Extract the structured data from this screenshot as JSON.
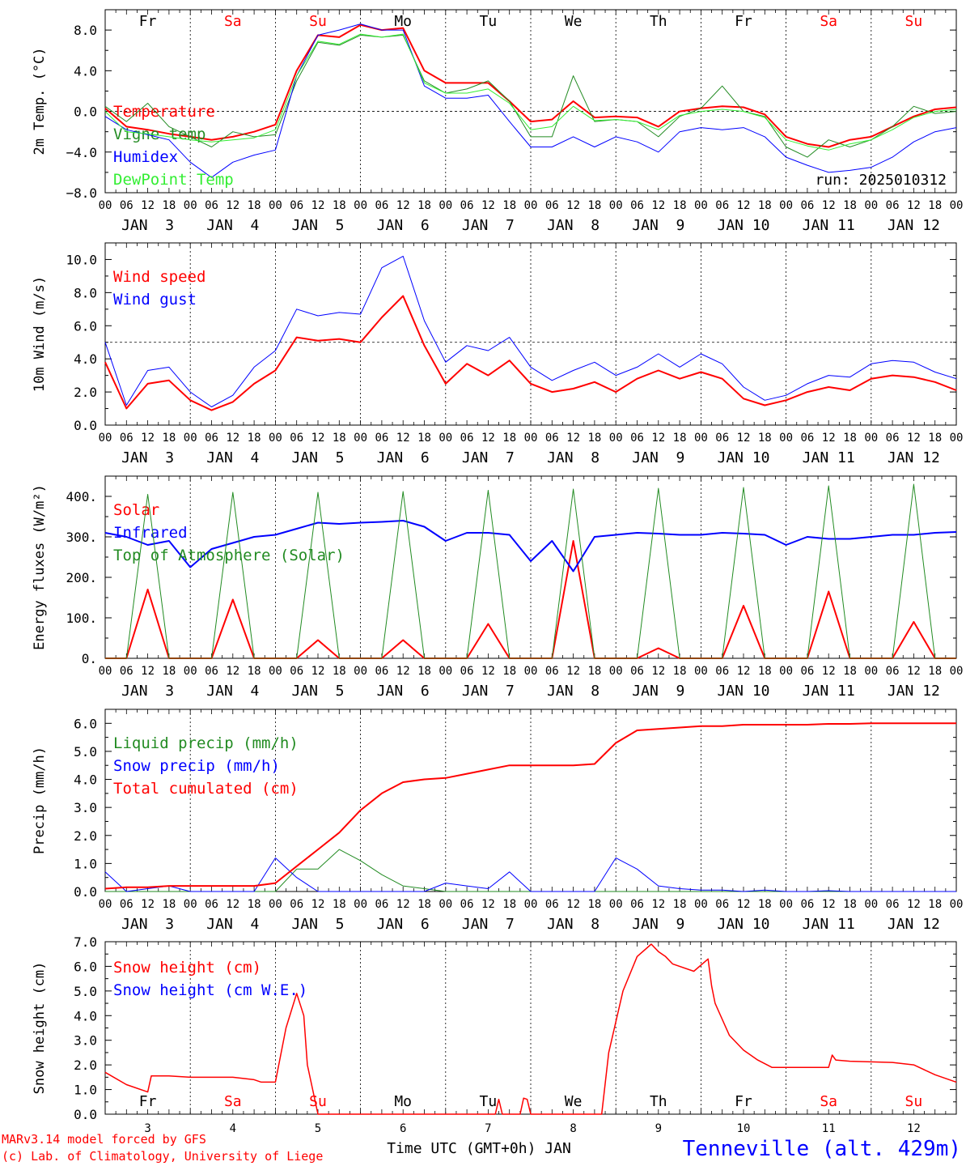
{
  "colors": {
    "red": "#ff0000",
    "dark_green": "#228b22",
    "blue": "#0000ff",
    "light_green": "#33ee33",
    "black": "#000000",
    "weekend": "#ff0000"
  },
  "x_axis": {
    "start": "2025-01-03 00 UTC",
    "hours_total": 240,
    "hour_ticks": [
      "00",
      "06",
      "12",
      "18"
    ],
    "date_labels": [
      "JAN  3",
      "JAN  4",
      "JAN  5",
      "JAN  6",
      "JAN  7",
      "JAN  8",
      "JAN  9",
      "JAN 10",
      "JAN 11",
      "JAN 12"
    ],
    "day_names": [
      "Fr",
      "Sa",
      "Su",
      "Mo",
      "Tu",
      "We",
      "Th",
      "Fr",
      "Sa",
      "Su"
    ],
    "weekend_days": [
      1,
      2,
      8,
      9
    ],
    "bottom_day_numbers": [
      "3",
      "4",
      "5",
      "6",
      "7",
      "8",
      "9",
      "10",
      "11",
      "12"
    ],
    "bottom_axis_label": "Time UTC (GMT+0h) JAN"
  },
  "footer": {
    "credit_line1": "MARv3.14 model forced by GFS",
    "credit_line2": "(c) Lab. of Climatology, University of Liege",
    "station": "Tenneville (alt. 429m)"
  },
  "chart_data": [
    {
      "type": "line",
      "ylabel": "2m Temp. (°C)",
      "ylim": [
        -8,
        10
      ],
      "yticks": [
        -8,
        -4,
        0,
        4,
        8
      ],
      "ytick_labels": [
        "−8.0",
        "−4.0",
        "0.0",
        "4.0",
        "8.0"
      ],
      "ref_line": 0,
      "annotation": "run: 2025010312",
      "x_hours": [
        0,
        6,
        12,
        18,
        24,
        30,
        36,
        42,
        48,
        54,
        60,
        66,
        72,
        78,
        84,
        90,
        96,
        102,
        108,
        114,
        120,
        126,
        132,
        138,
        144,
        150,
        156,
        162,
        168,
        174,
        180,
        186,
        192,
        198,
        204,
        210,
        216,
        222,
        228,
        234,
        240
      ],
      "series": [
        {
          "name": "Temperature",
          "color": "#ff0000",
          "width": 2,
          "values": [
            0.3,
            -1.5,
            -1.8,
            -2.2,
            -2.5,
            -2.8,
            -2.5,
            -2.0,
            -1.3,
            4.0,
            7.5,
            7.3,
            8.5,
            8.0,
            8.2,
            4.0,
            2.8,
            2.8,
            2.8,
            1.0,
            -1.0,
            -0.8,
            1.0,
            -0.6,
            -0.5,
            -0.6,
            -1.5,
            0.0,
            0.3,
            0.5,
            0.4,
            -0.3,
            -2.5,
            -3.2,
            -3.5,
            -2.8,
            -2.5,
            -1.5,
            -0.5,
            0.2,
            0.4
          ]
        },
        {
          "name": "Vigne temp",
          "color": "#228b22",
          "width": 1,
          "values": [
            0.5,
            -1.0,
            0.8,
            -1.5,
            -2.5,
            -3.5,
            -2.0,
            -2.5,
            -2.3,
            3.0,
            6.8,
            6.5,
            7.5,
            7.3,
            7.5,
            3.0,
            1.8,
            2.2,
            3.0,
            1.0,
            -2.5,
            -2.5,
            3.5,
            -1.0,
            -0.8,
            -1.0,
            -2.5,
            -0.5,
            0.3,
            2.5,
            0.0,
            -0.5,
            -3.5,
            -4.5,
            -2.8,
            -3.5,
            -2.8,
            -1.5,
            0.5,
            -0.2,
            0.0
          ]
        },
        {
          "name": "Humidex",
          "color": "#0000ff",
          "width": 1,
          "values": [
            -0.5,
            -1.8,
            -2.3,
            -2.8,
            -5.0,
            -6.5,
            -5.0,
            -4.3,
            -3.8,
            3.5,
            7.5,
            8.0,
            8.6,
            8.0,
            8.0,
            2.5,
            1.3,
            1.3,
            1.6,
            -1.0,
            -3.5,
            -3.5,
            -2.5,
            -3.5,
            -2.5,
            -3.0,
            -4.0,
            -2.0,
            -1.6,
            -1.8,
            -1.6,
            -2.5,
            -4.5,
            -5.3,
            -6.0,
            -5.8,
            -5.5,
            -4.5,
            -3.0,
            -2.0,
            -1.6
          ]
        },
        {
          "name": "DewPoint Temp",
          "color": "#33ee33",
          "width": 1,
          "values": [
            0.0,
            -2.0,
            -2.2,
            -2.5,
            -2.8,
            -3.0,
            -2.8,
            -2.6,
            -1.8,
            3.5,
            6.9,
            6.6,
            7.6,
            7.3,
            7.6,
            2.8,
            1.8,
            1.8,
            2.2,
            0.8,
            -1.8,
            -1.5,
            0.5,
            -0.9,
            -0.8,
            -1.0,
            -1.8,
            -0.4,
            0.0,
            0.2,
            0.0,
            -0.6,
            -2.8,
            -3.4,
            -3.8,
            -3.2,
            -2.8,
            -1.8,
            -0.6,
            0.0,
            0.2
          ]
        }
      ]
    },
    {
      "type": "line",
      "ylabel": "10m Wind (m/s)",
      "ylim": [
        0,
        11
      ],
      "yticks": [
        0,
        2,
        4,
        6,
        8,
        10
      ],
      "ytick_labels": [
        "0.0",
        "2.0",
        "4.0",
        "6.0",
        "8.0",
        "10.0"
      ],
      "ref_line": 5,
      "x_hours": [
        0,
        6,
        12,
        18,
        24,
        30,
        36,
        42,
        48,
        54,
        60,
        66,
        72,
        78,
        84,
        90,
        96,
        102,
        108,
        114,
        120,
        126,
        132,
        138,
        144,
        150,
        156,
        162,
        168,
        174,
        180,
        186,
        192,
        198,
        204,
        210,
        216,
        222,
        228,
        234,
        240
      ],
      "series": [
        {
          "name": "Wind speed",
          "color": "#ff0000",
          "width": 2,
          "values": [
            3.8,
            1.0,
            2.5,
            2.7,
            1.5,
            0.9,
            1.4,
            2.5,
            3.3,
            5.3,
            5.1,
            5.2,
            5.0,
            6.5,
            7.8,
            4.8,
            2.5,
            3.7,
            3.0,
            3.9,
            2.5,
            2.0,
            2.2,
            2.6,
            2.0,
            2.8,
            3.3,
            2.8,
            3.2,
            2.8,
            1.6,
            1.2,
            1.5,
            2.0,
            2.3,
            2.1,
            2.8,
            3.0,
            2.9,
            2.6,
            2.1
          ]
        },
        {
          "name": "Wind gust",
          "color": "#0000ff",
          "width": 1,
          "values": [
            5.0,
            1.2,
            3.3,
            3.5,
            2.0,
            1.1,
            1.8,
            3.5,
            4.5,
            7.0,
            6.6,
            6.8,
            6.7,
            9.5,
            10.2,
            6.3,
            3.8,
            4.8,
            4.5,
            5.3,
            3.5,
            2.7,
            3.3,
            3.8,
            3.0,
            3.5,
            4.3,
            3.5,
            4.3,
            3.7,
            2.3,
            1.5,
            1.8,
            2.5,
            3.0,
            2.9,
            3.7,
            3.9,
            3.8,
            3.2,
            2.8
          ]
        }
      ]
    },
    {
      "type": "line",
      "ylabel": "Energy fluxes (W/m²)",
      "ylim": [
        0,
        450
      ],
      "yticks": [
        0,
        100,
        200,
        300,
        400
      ],
      "ytick_labels": [
        "0.",
        "100.",
        "200.",
        "300.",
        "400."
      ],
      "x_hours": [
        0,
        6,
        12,
        18,
        24,
        30,
        36,
        42,
        48,
        54,
        60,
        66,
        72,
        78,
        84,
        90,
        96,
        102,
        108,
        114,
        120,
        126,
        132,
        138,
        144,
        150,
        156,
        162,
        168,
        174,
        180,
        186,
        192,
        198,
        204,
        210,
        216,
        222,
        228,
        234,
        240
      ],
      "series": [
        {
          "name": "Solar",
          "color": "#ff0000",
          "width": 2,
          "values": [
            0,
            0,
            170,
            0,
            0,
            0,
            145,
            0,
            0,
            0,
            45,
            0,
            0,
            0,
            45,
            0,
            0,
            0,
            85,
            0,
            0,
            0,
            290,
            0,
            0,
            0,
            25,
            0,
            0,
            0,
            130,
            0,
            0,
            0,
            165,
            0,
            0,
            0,
            90,
            0,
            0
          ]
        },
        {
          "name": "Infrared",
          "color": "#0000ff",
          "width": 2,
          "values": [
            310,
            300,
            280,
            290,
            225,
            270,
            285,
            300,
            305,
            320,
            335,
            332,
            335,
            337,
            340,
            325,
            290,
            310,
            310,
            305,
            240,
            290,
            215,
            300,
            305,
            310,
            308,
            305,
            305,
            310,
            308,
            305,
            280,
            300,
            295,
            295,
            300,
            305,
            305,
            310,
            312
          ]
        },
        {
          "name": "Top of Atmosphere (Solar)",
          "color": "#228b22",
          "width": 1,
          "values": [
            0,
            0,
            405,
            0,
            0,
            0,
            410,
            0,
            0,
            0,
            410,
            0,
            0,
            0,
            412,
            0,
            0,
            0,
            415,
            0,
            0,
            0,
            418,
            0,
            0,
            0,
            420,
            0,
            0,
            0,
            422,
            0,
            0,
            0,
            426,
            0,
            0,
            0,
            430,
            0,
            0
          ]
        }
      ]
    },
    {
      "type": "line",
      "ylabel": "Precip (mm/h)",
      "ylim": [
        0,
        6.5
      ],
      "yticks": [
        0,
        1,
        2,
        3,
        4,
        5,
        6
      ],
      "ytick_labels": [
        "0.0",
        "1.0",
        "2.0",
        "3.0",
        "4.0",
        "5.0",
        "6.0"
      ],
      "x_hours": [
        0,
        6,
        12,
        18,
        24,
        30,
        36,
        42,
        48,
        54,
        60,
        66,
        72,
        78,
        84,
        90,
        96,
        102,
        108,
        114,
        120,
        126,
        132,
        138,
        144,
        150,
        156,
        162,
        168,
        174,
        180,
        186,
        192,
        198,
        204,
        210,
        216,
        222,
        228,
        234,
        240
      ],
      "series": [
        {
          "name": "Liquid precip (mm/h)",
          "color": "#228b22",
          "width": 1,
          "values": [
            0,
            0,
            0,
            0,
            0,
            0,
            0,
            0,
            0,
            0.8,
            0.8,
            1.5,
            1.1,
            0.6,
            0.2,
            0.1,
            0,
            0,
            0,
            0,
            0,
            0,
            0,
            0,
            0,
            0,
            0,
            0,
            0,
            0,
            0,
            0,
            0,
            0,
            0,
            0,
            0,
            0,
            0,
            0,
            0
          ]
        },
        {
          "name": "Snow precip (mm/h)",
          "color": "#0000ff",
          "width": 1,
          "values": [
            0.7,
            0,
            0.1,
            0.2,
            0,
            0,
            0,
            0,
            1.2,
            0.5,
            0,
            0,
            0,
            0,
            0,
            0,
            0.3,
            0.2,
            0.1,
            0.7,
            0,
            0,
            0,
            0,
            1.2,
            0.8,
            0.2,
            0.1,
            0.05,
            0.05,
            0,
            0.05,
            0,
            0,
            0.03,
            0,
            0,
            0,
            0,
            0,
            0
          ]
        },
        {
          "name": "Total cumulated (cm)",
          "color": "#ff0000",
          "width": 2,
          "values": [
            0.1,
            0.15,
            0.15,
            0.2,
            0.2,
            0.2,
            0.2,
            0.2,
            0.3,
            0.9,
            1.5,
            2.1,
            2.9,
            3.5,
            3.9,
            4.0,
            4.05,
            4.2,
            4.35,
            4.5,
            4.5,
            4.5,
            4.5,
            4.55,
            5.3,
            5.75,
            5.8,
            5.85,
            5.9,
            5.9,
            5.95,
            5.95,
            5.95,
            5.95,
            5.98,
            5.98,
            6.0,
            6.0,
            6.0,
            6.0,
            6.0
          ]
        }
      ]
    },
    {
      "type": "line",
      "ylabel": "Snow height (cm)",
      "ylim": [
        0,
        7
      ],
      "yticks": [
        0,
        1,
        2,
        3,
        4,
        5,
        6,
        7
      ],
      "ytick_labels": [
        "0.0",
        "1.0",
        "2.0",
        "3.0",
        "4.0",
        "5.0",
        "6.0",
        "7.0"
      ],
      "x_hours": [
        0,
        6,
        12,
        13,
        14,
        18,
        24,
        30,
        36,
        42,
        43,
        44,
        48,
        51,
        54,
        56,
        57,
        60,
        70,
        80,
        100,
        110,
        111,
        112,
        117,
        118,
        119,
        120,
        121,
        122,
        125,
        140,
        142,
        146,
        150,
        154,
        156,
        158,
        160,
        166,
        170,
        171,
        172,
        176,
        180,
        184,
        188,
        192,
        198,
        204,
        205,
        206,
        210,
        222,
        228,
        234,
        240
      ],
      "series": [
        {
          "name": "Snow height (cm)",
          "color": "#ff0000",
          "width": 1.5,
          "values": [
            1.7,
            1.2,
            0.9,
            1.55,
            1.55,
            1.55,
            1.5,
            1.5,
            1.5,
            1.4,
            1.35,
            1.3,
            1.3,
            3.5,
            4.9,
            4.0,
            2.0,
            0,
            0,
            0,
            0,
            0,
            0.6,
            0,
            0,
            0.65,
            0.6,
            0,
            0,
            0,
            0,
            0,
            2.5,
            5.0,
            6.4,
            6.9,
            6.6,
            6.4,
            6.1,
            5.8,
            6.3,
            5.2,
            4.5,
            3.2,
            2.6,
            2.2,
            1.9,
            1.9,
            1.9,
            1.9,
            2.4,
            2.2,
            2.15,
            2.1,
            2.0,
            1.6,
            1.3
          ]
        },
        {
          "name": "Snow height (cm W.E.)",
          "color": "#0000ff",
          "width": 1,
          "values": []
        }
      ]
    }
  ]
}
